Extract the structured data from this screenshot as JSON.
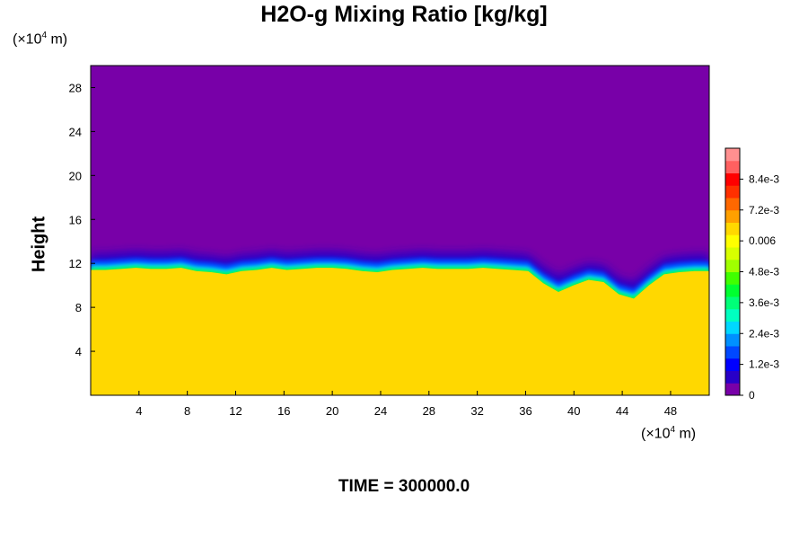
{
  "chart_data": {
    "type": "heatmap",
    "title": "H2O-g Mixing Ratio [kg/kg]",
    "ylabel": "Height",
    "xlabel": "",
    "y_unit": {
      "prefix": "(×10",
      "exp": "4",
      "suffix": " m)"
    },
    "x_unit": {
      "prefix": "(×10",
      "exp": "4",
      "suffix": " m)"
    },
    "xlim": [
      0,
      51.2
    ],
    "ylim": [
      0,
      30
    ],
    "x_ticks": [
      "4",
      "8",
      "12",
      "16",
      "20",
      "24",
      "28",
      "32",
      "36",
      "40",
      "44",
      "48"
    ],
    "x_tick_values": [
      4,
      8,
      12,
      16,
      20,
      24,
      28,
      32,
      36,
      40,
      44,
      48
    ],
    "y_ticks": [
      "4",
      "8",
      "12",
      "16",
      "20",
      "24",
      "28"
    ],
    "y_tick_values": [
      4,
      8,
      12,
      16,
      20,
      24,
      28
    ],
    "colorbar": {
      "range": [
        0,
        0.0096
      ],
      "tick_labels": [
        "8.4e-3",
        "7.2e-3",
        "0.006",
        "4.8e-3",
        "3.6e-3",
        "2.4e-3",
        "1.2e-3",
        "0"
      ],
      "tick_values": [
        0.0084,
        0.0072,
        0.006,
        0.0048,
        0.0036,
        0.0024,
        0.0012,
        0
      ],
      "colors": [
        "#7800a8",
        "#2800c8",
        "#0000ff",
        "#0048ff",
        "#0090ff",
        "#00d8ff",
        "#00ffc0",
        "#00ff78",
        "#00ff30",
        "#40ff00",
        "#a0ff00",
        "#d8ff00",
        "#ffff00",
        "#ffd800",
        "#ffa000",
        "#ff6800",
        "#ff3000",
        "#ff0000",
        "#ff6060",
        "#ff9090"
      ]
    },
    "field": {
      "upper_value": 0.0,
      "lower_value": 0.0065,
      "moist_top_height": [
        11.4,
        11.4,
        11.5,
        11.6,
        11.5,
        11.5,
        11.6,
        11.3,
        11.2,
        11.0,
        11.3,
        11.4,
        11.6,
        11.4,
        11.5,
        11.6,
        11.6,
        11.5,
        11.3,
        11.2,
        11.4,
        11.5,
        11.6,
        11.5,
        11.5,
        11.5,
        11.6,
        11.5,
        11.4,
        11.3,
        10.2,
        9.4,
        10.0,
        10.5,
        10.3,
        9.2,
        8.8,
        10.0,
        11.0,
        11.2,
        11.3,
        11.3
      ]
    },
    "time_label": "TIME",
    "time_eq": "=",
    "time_value": "300000.0"
  }
}
